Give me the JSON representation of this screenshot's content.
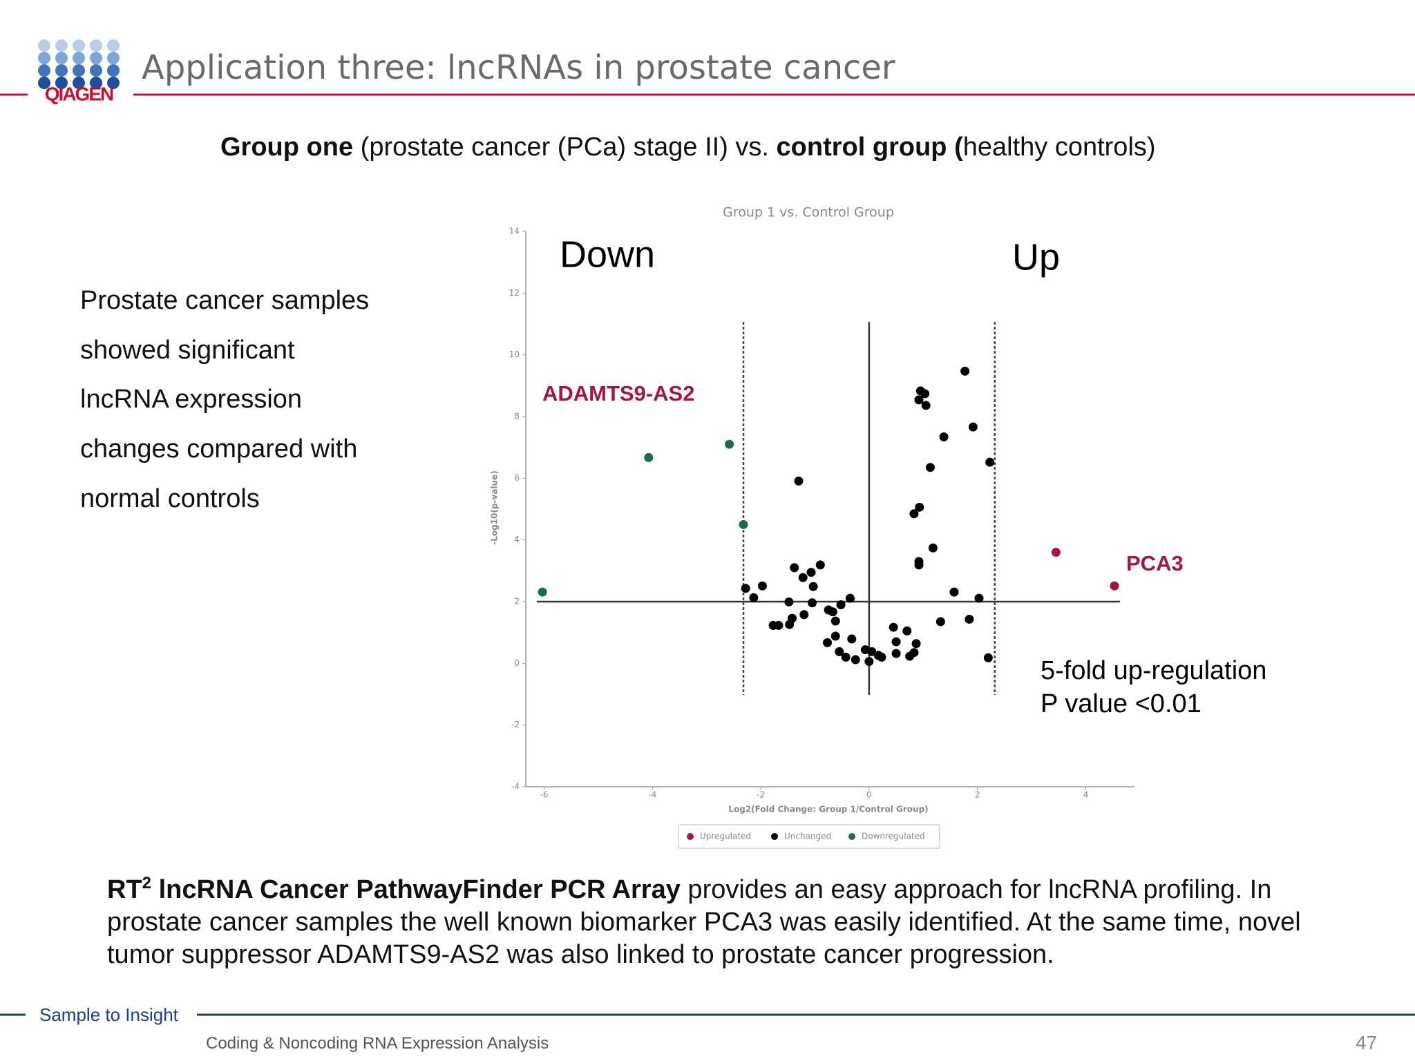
{
  "header": {
    "logo": "QIAGEN",
    "title": "Application three: lncRNAs in prostate cancer"
  },
  "subtitle": [
    {
      "text": "Group one",
      "bold": true
    },
    {
      "text": " (prostate cancer (PCa) stage II) vs. ",
      "bold": false
    },
    {
      "text": "control group (",
      "bold": true
    },
    {
      "text": "healthy controls)",
      "bold": false
    }
  ],
  "summary_lines": [
    "Prostate cancer samples",
    "showed significant",
    "lncRNA expression",
    "changes compared with",
    "normal controls"
  ],
  "chart_data": {
    "type": "scatter",
    "title": "Group 1 vs. Control Group",
    "x_label": "Log2(Fold Change: Group 1/Control Group)",
    "y_label": "-Log10(p-value)",
    "xlim": [
      -6.3,
      4.9
    ],
    "ylim": [
      -4,
      14
    ],
    "xticks": [
      -6,
      -4,
      -2,
      0,
      2,
      4
    ],
    "yticks": [
      -4,
      -2,
      0,
      2,
      4,
      6,
      8,
      10,
      12,
      14
    ],
    "reference_lines": {
      "x": [
        -2.32,
        0,
        2.32
      ],
      "y": [
        2
      ]
    },
    "annotations": {
      "down": "Down",
      "up": "Up",
      "downregulated_gene": "ADAMTS9-AS2",
      "upregulated_gene": "PCA3",
      "criteria": [
        "5-fold up-regulation",
        "P value <0.01"
      ]
    },
    "series": [
      {
        "name": "Upregulated",
        "color": "#a3173f",
        "x": [
          3.45,
          4.53
        ],
        "y": [
          3.6,
          2.51
        ]
      },
      {
        "name": "Unchanged",
        "color": "#000000",
        "x": [
          1.77,
          0.95,
          1.03,
          0.92,
          1.05,
          1.92,
          1.38,
          2.23,
          1.13,
          -1.3,
          0.93,
          0.83,
          1.18,
          0.92,
          0.92,
          -1.38,
          -1.07,
          -0.9,
          -1.22,
          -1.03,
          -1.97,
          -2.28,
          -2.13,
          -1.48,
          -1.05,
          -0.35,
          -0.52,
          -0.75,
          -0.67,
          1.57,
          2.03,
          -1.42,
          -1.2,
          -1.47,
          -1.77,
          -1.67,
          -0.62,
          1.32,
          1.85,
          0.45,
          0.7,
          -0.62,
          -0.32,
          -0.77,
          0.5,
          0.87,
          -0.55,
          -0.43,
          -0.25,
          -0.07,
          0.05,
          0.17,
          0.0,
          0.5,
          0.75,
          0.83,
          2.2,
          0.23
        ],
        "y": [
          9.47,
          8.83,
          8.74,
          8.54,
          8.36,
          7.66,
          7.34,
          6.52,
          6.35,
          5.91,
          5.06,
          4.85,
          3.74,
          3.3,
          3.19,
          3.1,
          2.95,
          3.19,
          2.78,
          2.49,
          2.51,
          2.43,
          2.13,
          1.99,
          1.96,
          2.11,
          1.9,
          1.73,
          1.67,
          2.31,
          2.11,
          1.46,
          1.58,
          1.26,
          1.23,
          1.23,
          1.37,
          1.35,
          1.43,
          1.17,
          1.05,
          0.88,
          0.79,
          0.67,
          0.7,
          0.64,
          0.38,
          0.2,
          0.12,
          0.44,
          0.38,
          0.26,
          0.06,
          0.32,
          0.23,
          0.35,
          0.18,
          0.2
        ]
      },
      {
        "name": "Downregulated",
        "color": "#1a6b4f",
        "x": [
          -6.03,
          -4.07,
          -2.58,
          -2.32
        ],
        "y": [
          2.31,
          6.67,
          7.1,
          4.5
        ]
      }
    ]
  },
  "body": [
    {
      "text": "RT",
      "bold": true,
      "sup": false
    },
    {
      "text": "2",
      "bold": true,
      "sup": true
    },
    {
      "text": "  lncRNA Cancer PathwayFinder PCR Array",
      "bold": true,
      "sup": false
    },
    {
      "text": " provides an easy approach for lncRNA profiling. In prostate cancer samples the well known biomarker PCA3 was easily identified. At the same time, novel tumor suppressor ADAMTS9-AS2 was also linked to prostate cancer progression.",
      "bold": false,
      "sup": false
    }
  ],
  "footer": {
    "tagline": "Sample to Insight",
    "section": "Coding & Noncoding RNA Expression Analysis",
    "page": "47"
  }
}
